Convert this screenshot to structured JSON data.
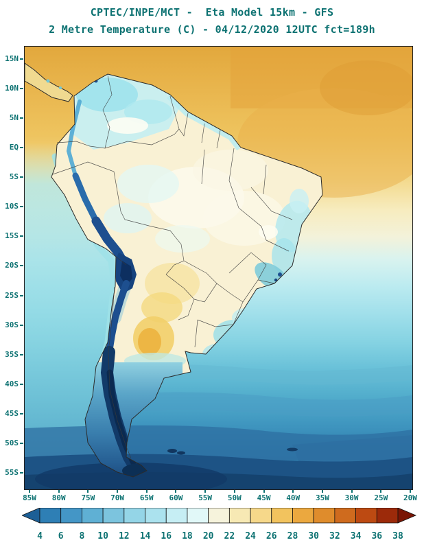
{
  "header": {
    "title_line1": "CPTEC/INPE/MCT -  Eta Model 15km - GFS",
    "title_line2": "2 Metre Temperature (C) - 04/12/2020 12UTC fct=189h"
  },
  "map": {
    "y_axis_labels": [
      "15N",
      "10N",
      "5N",
      "EQ",
      "5S",
      "10S",
      "15S",
      "20S",
      "25S",
      "30S",
      "35S",
      "40S",
      "45S",
      "50S",
      "55S"
    ],
    "x_axis_labels": [
      "85W",
      "80W",
      "75W",
      "70W",
      "65W",
      "60W",
      "55W",
      "50W",
      "45W",
      "40W",
      "35W",
      "30W",
      "25W",
      "20W"
    ]
  },
  "colorbar": {
    "tick_labels": [
      "4",
      "6",
      "8",
      "10",
      "12",
      "14",
      "16",
      "18",
      "20",
      "22",
      "24",
      "26",
      "28",
      "30",
      "32",
      "34",
      "36",
      "38"
    ],
    "colors": [
      "#1c5f96",
      "#2e7fb5",
      "#4496c6",
      "#5fb0d4",
      "#7cc4de",
      "#94d5e7",
      "#abe2ee",
      "#c6eef4",
      "#e1f8f8",
      "#f6f3dc",
      "#f7e9b4",
      "#f6d88a",
      "#f2c35e",
      "#eba83f",
      "#df8c2c",
      "#cf6b1e",
      "#bd4a12",
      "#9c2a0a",
      "#7a1504"
    ]
  },
  "palette": {
    "label_text": "#0d7272",
    "frame": "#222222"
  },
  "chart_data": {
    "type": "heatmap",
    "title": "2 Metre Temperature (C)",
    "source": "CPTEC/INPE/MCT",
    "model": "Eta Model 15km - GFS",
    "valid": "04/12/2020 12UTC fct=189h",
    "lat_ticks": [
      "15N",
      "10N",
      "5N",
      "EQ",
      "5S",
      "10S",
      "15S",
      "20S",
      "25S",
      "30S",
      "35S",
      "40S",
      "45S",
      "50S",
      "55S"
    ],
    "lon_ticks": [
      "85W",
      "80W",
      "75W",
      "70W",
      "65W",
      "60W",
      "55W",
      "50W",
      "45W",
      "40W",
      "35W",
      "30W",
      "25W",
      "20W"
    ],
    "colorbar_values_c": [
      4,
      6,
      8,
      10,
      12,
      14,
      16,
      18,
      20,
      22,
      24,
      26,
      28,
      30,
      32,
      34,
      36,
      38
    ],
    "legend_position": "bottom"
  }
}
